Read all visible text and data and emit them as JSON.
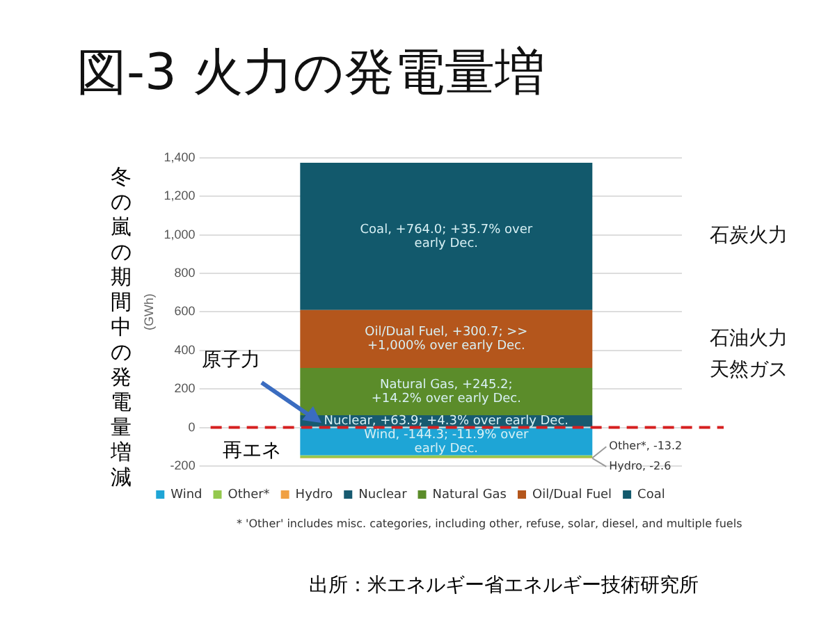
{
  "chart_data": {
    "type": "bar",
    "title": "図-3 火力の発電量増",
    "ylabel": "(GWh)",
    "categories": [
      null
    ],
    "stacked": true,
    "grid": "y",
    "legend": "bottom",
    "series": [
      {
        "name": "Wind",
        "color": "#1ea5d6",
        "values": [
          -144.3
        ]
      },
      {
        "name": "Other*",
        "color": "#94c84e",
        "values": [
          -13.2
        ]
      },
      {
        "name": "Hydro",
        "color": "#f0a042",
        "values": [
          -2.6
        ]
      },
      {
        "name": "Nuclear",
        "color": "#175a70",
        "values": [
          63.9
        ]
      },
      {
        "name": "Natural Gas",
        "color": "#5b8c2a",
        "values": [
          245.2
        ]
      },
      {
        "name": "Oil/Dual Fuel",
        "color": "#b4561c",
        "values": [
          300.7
        ]
      },
      {
        "name": "Coal",
        "color": "#12596c",
        "values": [
          764.0
        ]
      }
    ],
    "ylim": [
      -200,
      1400
    ],
    "yticks": [
      {
        "value": -200,
        "label": "-200"
      },
      0,
      200,
      400,
      600,
      800,
      {
        "value": 1000,
        "label": "1,000"
      },
      {
        "value": 1200,
        "label": "1,200"
      },
      {
        "value": 1400,
        "label": "1,400"
      }
    ],
    "ref_lines": [
      {
        "axis": "y",
        "value": 0,
        "color": "#d62020",
        "line_style": "dashed"
      }
    ],
    "annotations": [
      "Coal, +764.0; +35.7% over early Dec.",
      "Oil/Dual Fuel, +300.7; >> +1,000% over early Dec.",
      "Natural Gas, +245.2; +14.2% over early Dec.",
      "Nuclear, +63.9; +4.3% over early Dec.",
      "Wind, -144.3; -11.9% over early Dec.",
      "Other*, -13.2",
      "Hydro, -2.6",
      "石炭火力",
      "石油火力",
      "天然ガス",
      "原子力",
      "再エネ",
      "* 'Other' includes misc. categories, including other, refuse, solar, diesel, and multiple fuels",
      "出所：米エネルギー省エネルギー技術研究所",
      "冬の嵐の期間中の発電量増減"
    ]
  }
}
